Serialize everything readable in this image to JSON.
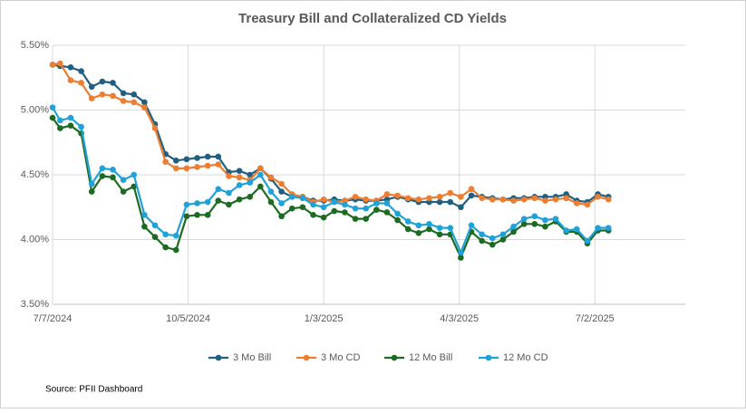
{
  "chart_data": {
    "type": "line",
    "title": "Treasury Bill and Collateralized CD Yields",
    "annotation": "Source: PFII Dashboard",
    "x": [
      "7/7/2024",
      "7/12/2024",
      "7/19/2024",
      "7/26/2024",
      "8/2/2024",
      "8/9/2024",
      "8/16/2024",
      "8/23/2024",
      "8/30/2024",
      "9/6/2024",
      "9/13/2024",
      "9/20/2024",
      "9/27/2024",
      "10/4/2024",
      "10/11/2024",
      "10/18/2024",
      "10/25/2024",
      "11/1/2024",
      "11/8/2024",
      "11/15/2024",
      "11/22/2024",
      "11/29/2024",
      "12/6/2024",
      "12/13/2024",
      "12/20/2024",
      "12/27/2024",
      "1/3/2025",
      "1/10/2025",
      "1/17/2025",
      "1/24/2025",
      "1/31/2025",
      "2/7/2025",
      "2/14/2025",
      "2/21/2025",
      "2/28/2025",
      "3/7/2025",
      "3/14/2025",
      "3/21/2025",
      "3/28/2025",
      "4/4/2025",
      "4/11/2025",
      "4/18/2025",
      "4/25/2025",
      "5/2/2025",
      "5/9/2025",
      "5/16/2025",
      "5/23/2025",
      "5/30/2025",
      "6/6/2025",
      "6/13/2025",
      "6/20/2025",
      "6/27/2025",
      "7/4/2025",
      "7/11/2025"
    ],
    "xlim": [
      "7/7/2024",
      "8/31/2025"
    ],
    "xticks": [
      "7/7/2024",
      "10/5/2024",
      "1/3/2025",
      "4/3/2025",
      "7/2/2025"
    ],
    "ylim": [
      3.5,
      5.5
    ],
    "yticks": [
      {
        "value": 3.5,
        "label": "3.50%"
      },
      {
        "value": 4.0,
        "label": "4.00%"
      },
      {
        "value": 4.5,
        "label": "4.50%"
      },
      {
        "value": 5.0,
        "label": "5.00%"
      },
      {
        "value": 5.5,
        "label": "5.50%"
      }
    ],
    "grid": true,
    "legend": "bottom",
    "series": [
      {
        "name": "3 Mo Bill",
        "color": "#215f80",
        "values": [
          5.35,
          5.34,
          5.33,
          5.3,
          5.18,
          5.22,
          5.21,
          5.13,
          5.12,
          5.06,
          4.89,
          4.66,
          4.61,
          4.62,
          4.63,
          4.64,
          4.64,
          4.52,
          4.53,
          4.5,
          4.55,
          4.47,
          4.37,
          4.33,
          4.33,
          4.3,
          4.3,
          4.31,
          4.3,
          4.31,
          4.3,
          4.3,
          4.31,
          4.33,
          4.31,
          4.29,
          4.29,
          4.29,
          4.29,
          4.25,
          4.34,
          4.33,
          4.32,
          4.31,
          4.32,
          4.32,
          4.33,
          4.33,
          4.33,
          4.35,
          4.3,
          4.29,
          4.35,
          4.33
        ]
      },
      {
        "name": "3 Mo CD",
        "color": "#ed7d31",
        "values": [
          5.35,
          5.36,
          5.23,
          5.21,
          5.09,
          5.12,
          5.11,
          5.07,
          5.06,
          5.02,
          4.86,
          4.6,
          4.55,
          4.55,
          4.56,
          4.57,
          4.58,
          4.49,
          4.48,
          4.46,
          4.55,
          4.48,
          4.43,
          4.35,
          4.33,
          4.29,
          4.31,
          4.29,
          4.3,
          4.33,
          4.31,
          4.3,
          4.35,
          4.34,
          4.32,
          4.31,
          4.32,
          4.33,
          4.36,
          4.33,
          4.39,
          4.32,
          4.31,
          4.31,
          4.3,
          4.31,
          4.32,
          4.3,
          4.31,
          4.32,
          4.28,
          4.27,
          4.33,
          4.31
        ]
      },
      {
        "name": "12 Mo Bill",
        "color": "#1d6b22",
        "values": [
          4.94,
          4.86,
          4.88,
          4.82,
          4.37,
          4.49,
          4.48,
          4.37,
          4.41,
          4.1,
          4.02,
          3.94,
          3.92,
          4.18,
          4.19,
          4.19,
          4.3,
          4.27,
          4.31,
          4.33,
          4.41,
          4.29,
          4.18,
          4.24,
          4.25,
          4.19,
          4.17,
          4.22,
          4.21,
          4.16,
          4.16,
          4.23,
          4.21,
          4.15,
          4.08,
          4.05,
          4.08,
          4.04,
          4.04,
          3.86,
          4.06,
          3.99,
          3.96,
          4.0,
          4.06,
          4.12,
          4.12,
          4.1,
          4.14,
          4.06,
          4.06,
          3.97,
          4.07,
          4.07
        ]
      },
      {
        "name": "12 Mo CD",
        "color": "#1ea2d9",
        "values": [
          5.02,
          4.92,
          4.94,
          4.87,
          4.43,
          4.55,
          4.54,
          4.46,
          4.5,
          4.19,
          4.11,
          4.04,
          4.03,
          4.27,
          4.28,
          4.29,
          4.39,
          4.36,
          4.42,
          4.44,
          4.5,
          4.37,
          4.28,
          4.33,
          4.32,
          4.27,
          4.25,
          4.29,
          4.27,
          4.24,
          4.24,
          4.28,
          4.28,
          4.2,
          4.14,
          4.11,
          4.12,
          4.09,
          4.09,
          3.9,
          4.11,
          4.04,
          4.01,
          4.04,
          4.1,
          4.16,
          4.18,
          4.15,
          4.16,
          4.07,
          4.08,
          3.99,
          4.09,
          4.09
        ]
      }
    ]
  }
}
